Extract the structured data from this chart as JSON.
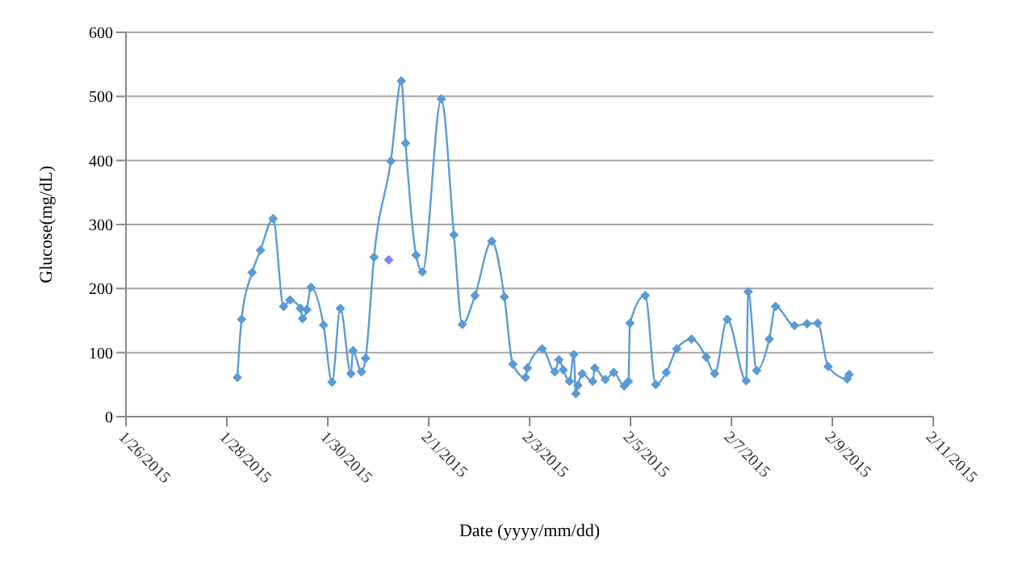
{
  "chart_data": {
    "type": "line",
    "xlabel": "Date (yyyy/mm/dd)",
    "ylabel": "Glucose(mg/dL)",
    "xlim": [
      "2015-01-26",
      "2015-02-11"
    ],
    "xticks": [
      {
        "value": "2015-01-26",
        "label": "1/26/2015"
      },
      {
        "value": "2015-01-28",
        "label": "1/28/2015"
      },
      {
        "value": "2015-01-30",
        "label": "1/30/2015"
      },
      {
        "value": "2015-02-01",
        "label": "2/1/2015"
      },
      {
        "value": "2015-02-03",
        "label": "2/3/2015"
      },
      {
        "value": "2015-02-05",
        "label": "2/5/2015"
      },
      {
        "value": "2015-02-07",
        "label": "2/7/2015"
      },
      {
        "value": "2015-02-09",
        "label": "2/9/2015"
      },
      {
        "value": "2015-02-11",
        "label": "2/11/2015"
      }
    ],
    "ylim": [
      0,
      600
    ],
    "yticks": [
      0,
      100,
      200,
      300,
      400,
      500,
      600
    ],
    "grid": "y",
    "marker": "diamond",
    "line_style": "solid",
    "series": [
      {
        "color": "#5b9bd5",
        "x": [
          "2015-01-28T05:00",
          "2015-01-28T07:00",
          "2015-01-28T12:00",
          "2015-01-28T16:00",
          "2015-01-28T22:00",
          "2015-01-29T03:00",
          "2015-01-29T06:00",
          "2015-01-29T11:00",
          "2015-01-29T12:00",
          "2015-01-29T14:00",
          "2015-01-29T16:00",
          "2015-01-29T22:00",
          "2015-01-30T02:00",
          "2015-01-30T06:00",
          "2015-01-30T11:00",
          "2015-01-30T12:00",
          "2015-01-30T16:00",
          "2015-01-30T18:00",
          "2015-01-30T22:00",
          "2015-01-31T06:00",
          "2015-01-31T11:00",
          "2015-01-31T13:00",
          "2015-01-31T18:00",
          "2015-01-31T21:00",
          "2015-02-01T06:00",
          "2015-02-01T12:00",
          "2015-02-01T16:00",
          "2015-02-01T22:00",
          "2015-02-02T06:00",
          "2015-02-02T12:00",
          "2015-02-02T16:00",
          "2015-02-02T22:00",
          "2015-02-02T23:00",
          "2015-02-03T06:00",
          "2015-02-03T12:00",
          "2015-02-03T14:00",
          "2015-02-03T16:00",
          "2015-02-03T19:00",
          "2015-02-03T21:00",
          "2015-02-03T22:00",
          "2015-02-03T23:00",
          "2015-02-04T01:00",
          "2015-02-04T06:00",
          "2015-02-04T07:00",
          "2015-02-04T12:00",
          "2015-02-04T16:00",
          "2015-02-04T21:00",
          "2015-02-04T23:00",
          "2015-02-04T23:45",
          "2015-02-05T07:00",
          "2015-02-05T12:00",
          "2015-02-05T17:00",
          "2015-02-05T22:00",
          "2015-02-06T05:00",
          "2015-02-06T12:00",
          "2015-02-06T16:00",
          "2015-02-06T22:00",
          "2015-02-07T07:00",
          "2015-02-07T08:00",
          "2015-02-07T12:00",
          "2015-02-07T18:00",
          "2015-02-07T21:00",
          "2015-02-08T06:00",
          "2015-02-08T12:00",
          "2015-02-08T17:00",
          "2015-02-08T22:00",
          "2015-02-09T07:00",
          "2015-02-09T08:00"
        ],
        "values": [
          61,
          152,
          225,
          260,
          309,
          172,
          182,
          169,
          153,
          167,
          202,
          143,
          54,
          169,
          67,
          103,
          70,
          91,
          249,
          399,
          524,
          427,
          252,
          226,
          496,
          284,
          144,
          189,
          274,
          187,
          82,
          61,
          76,
          106,
          70,
          89,
          73,
          55,
          97,
          36,
          49,
          67,
          55,
          76,
          58,
          69,
          48,
          55,
          146,
          189,
          50,
          69,
          106,
          121,
          93,
          67,
          152,
          56,
          195,
          72,
          121,
          172,
          142,
          145,
          146,
          78,
          59,
          66
        ]
      },
      {
        "type": "scatter",
        "color": "#8080ff",
        "x": [
          "2015-01-31T05:00"
        ],
        "values": [
          245
        ]
      }
    ]
  }
}
